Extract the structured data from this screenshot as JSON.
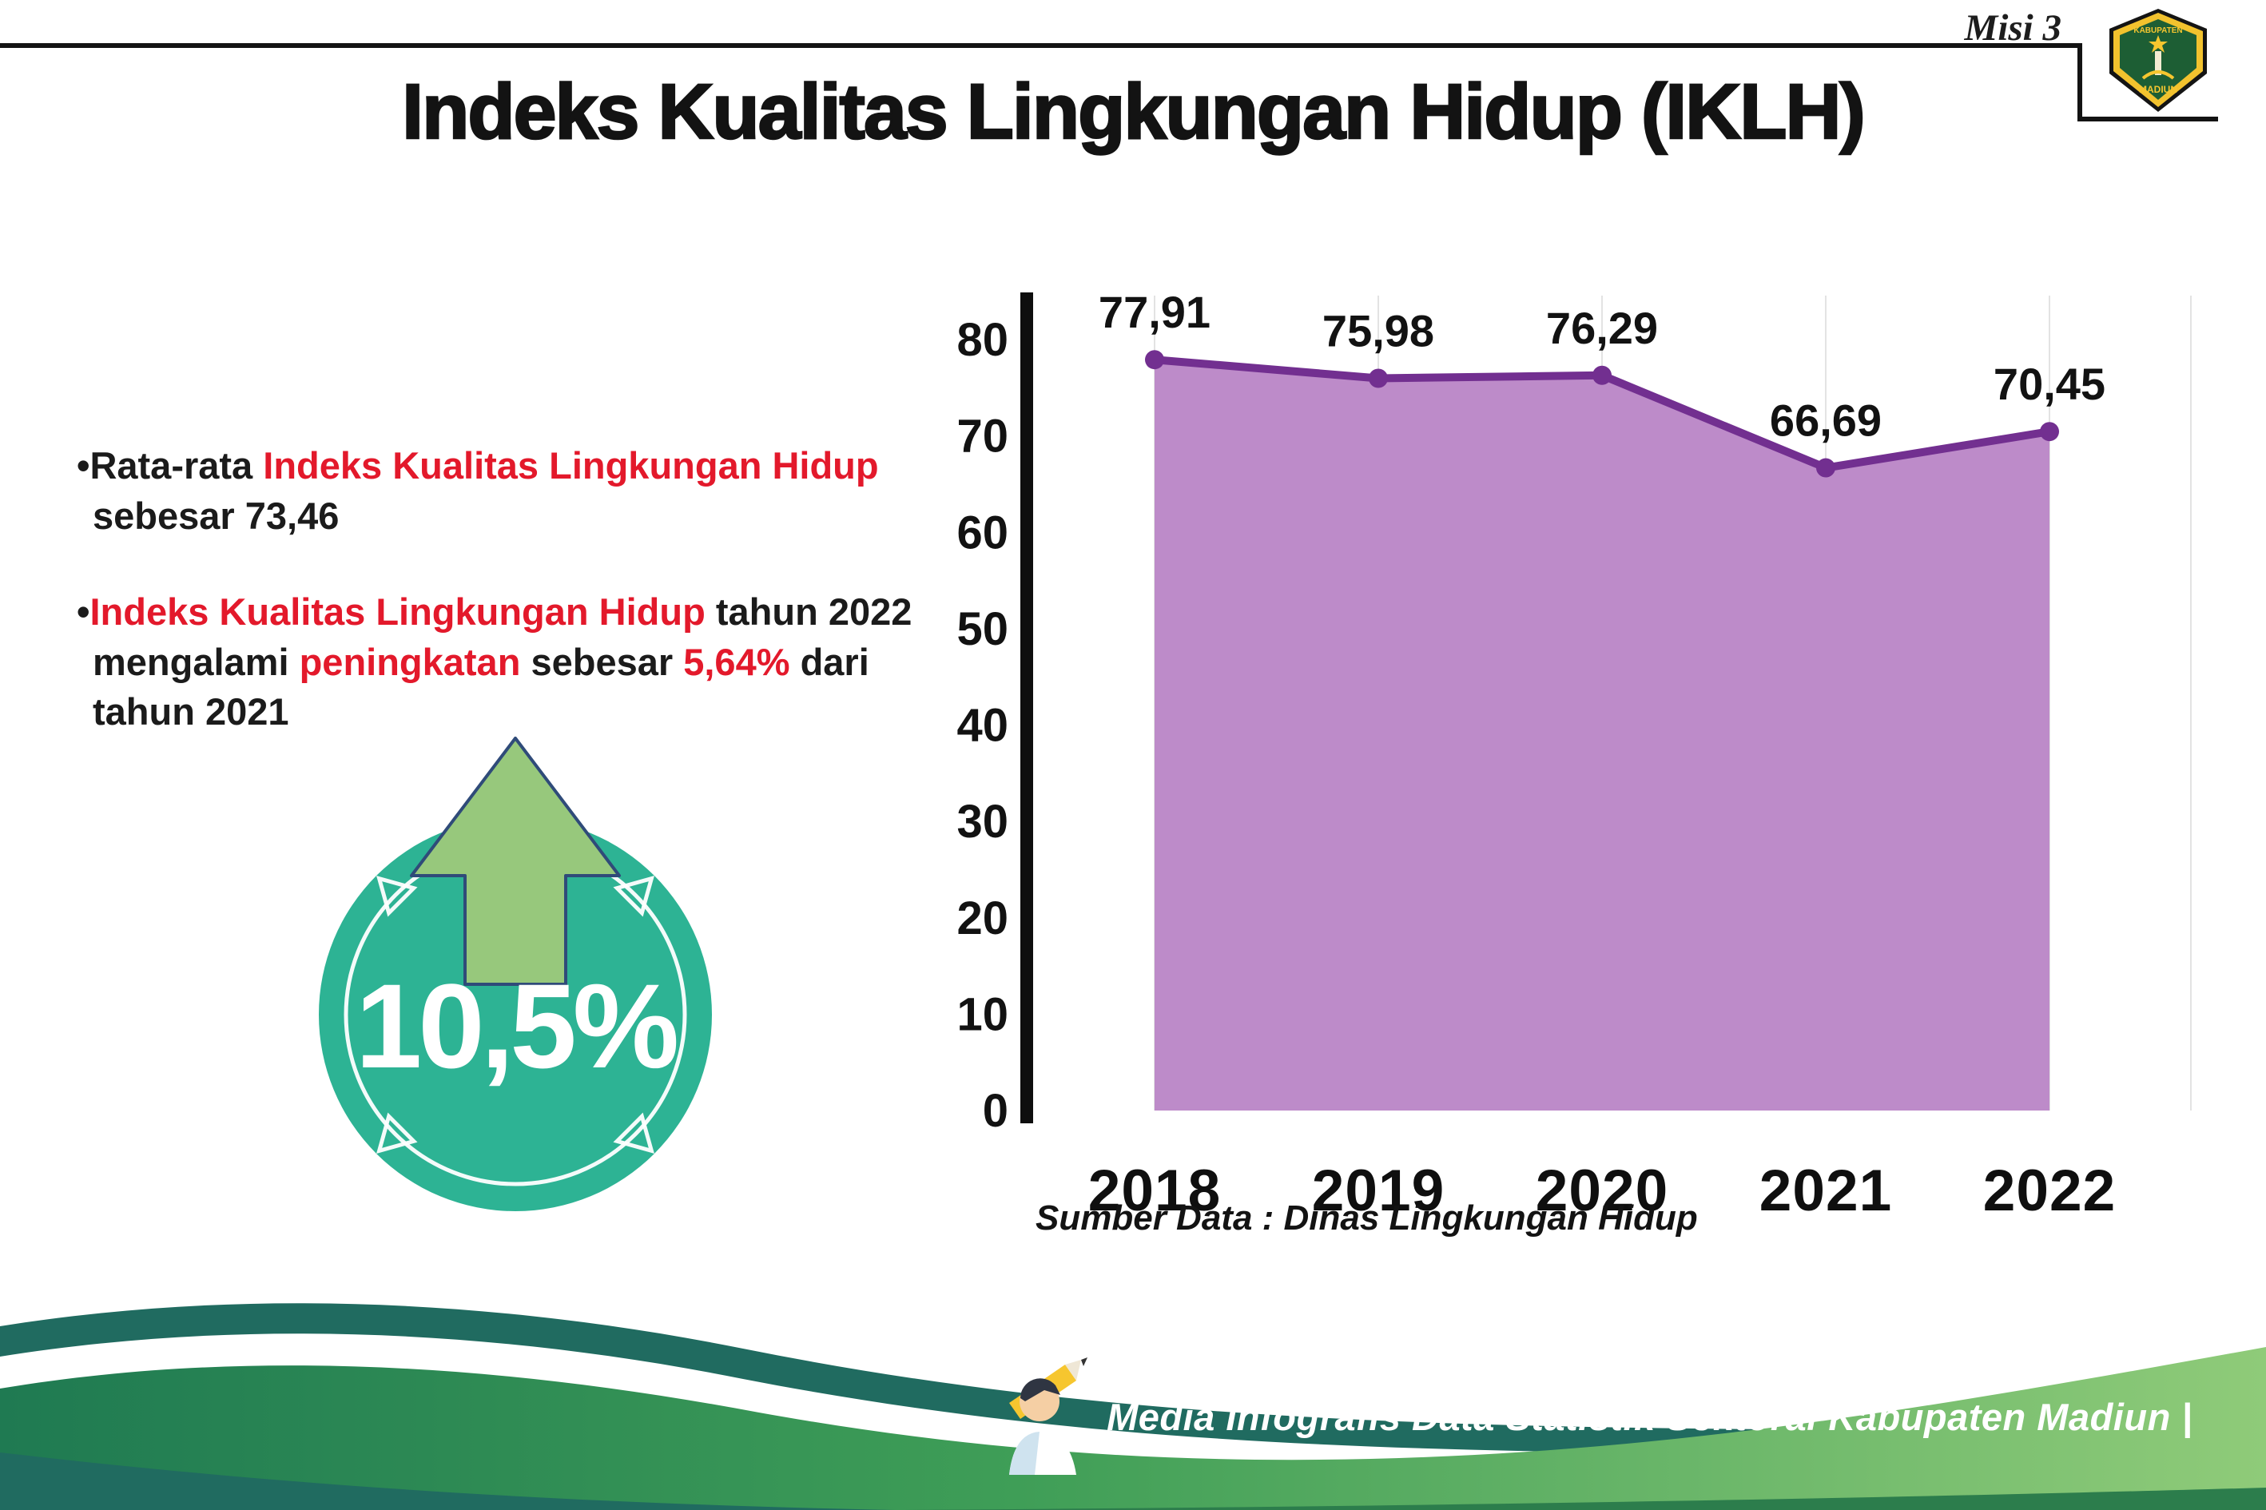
{
  "header": {
    "misi": "Misi 3",
    "title": "Indeks Kualitas Lingkungan Hidup (IKLH)"
  },
  "logo": {
    "name": "kabupaten-madiun-crest",
    "line1": "KABUPATEN",
    "line2": "MADIUN"
  },
  "bullets": [
    {
      "parts": [
        {
          "text": "•Rata-rata ",
          "color": "#1b1b1b"
        },
        {
          "text": "Indeks Kualitas Lingkungan Hidup",
          "color": "#e3192b"
        },
        {
          "text": " sebesar 73,46",
          "color": "#1b1b1b"
        }
      ]
    },
    {
      "parts": [
        {
          "text": "•",
          "color": "#1b1b1b"
        },
        {
          "text": "Indeks Kualitas Lingkungan Hidup",
          "color": "#e3192b"
        },
        {
          "text": " tahun 2022 mengalami ",
          "color": "#1b1b1b"
        },
        {
          "text": "peningkatan",
          "color": "#e3192b"
        },
        {
          "text": " sebesar ",
          "color": "#1b1b1b"
        },
        {
          "text": "5,64%",
          "color": "#e3192b"
        },
        {
          "text": " dari tahun 2021",
          "color": "#1b1b1b"
        }
      ]
    }
  ],
  "badge": {
    "value": "10,5%"
  },
  "colors": {
    "accent_red": "#e3192b",
    "badge_circle": "#2db394",
    "badge_arrow": "#97c87c",
    "footer_teal": "#206b60",
    "footer_green": "#3f9e57"
  },
  "chart_data": {
    "type": "area",
    "title": "",
    "xlabel": "",
    "ylabel": "",
    "categories": [
      "2018",
      "2019",
      "2020",
      "2021",
      "2022"
    ],
    "values": [
      77.91,
      75.98,
      76.29,
      66.69,
      70.45
    ],
    "value_labels": [
      "77,91",
      "75,98",
      "76,29",
      "66,69",
      "70,45"
    ],
    "ylim": [
      0,
      80
    ],
    "yticks": [
      0,
      10,
      20,
      30,
      40,
      50,
      60,
      70,
      80
    ],
    "grid": "faint-vertical",
    "legend": "none",
    "fill_color": "#bd8bc9",
    "line_color": "#722f90",
    "source": "Sumber Data : Dinas Lingkungan Hidup"
  },
  "footer": {
    "text": "Media Infografis Data Statistik Sektoral Kabupaten Madiun |"
  }
}
